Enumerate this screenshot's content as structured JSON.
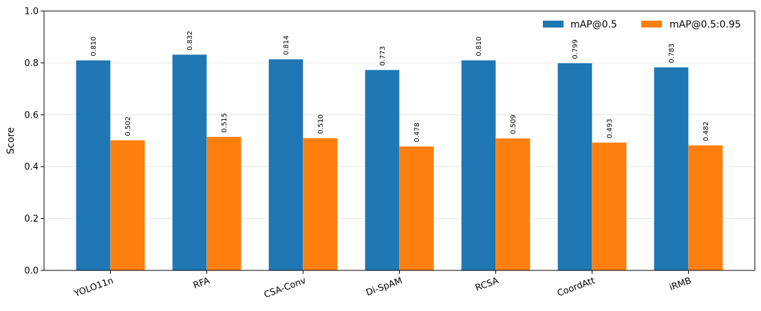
{
  "chart_data": {
    "type": "bar",
    "categories": [
      "YOLO11n",
      "RFA",
      "CSA-Conv",
      "Di-SpAM",
      "RCSA",
      "CoordAtt",
      "iRMB"
    ],
    "series": [
      {
        "name": "mAP@0.5",
        "color": "#1f77b4",
        "values": [
          0.81,
          0.832,
          0.814,
          0.773,
          0.81,
          0.799,
          0.783
        ],
        "labels": [
          "0.810",
          "0.832",
          "0.814",
          "0.773",
          "0.810",
          "0.799",
          "0.783"
        ]
      },
      {
        "name": "mAP@0.5:0.95",
        "color": "#ff7f0e",
        "values": [
          0.502,
          0.515,
          0.51,
          0.478,
          0.509,
          0.493,
          0.482
        ],
        "labels": [
          "0.502",
          "0.515",
          "0.510",
          "0.478",
          "0.509",
          "0.493",
          "0.482"
        ]
      }
    ],
    "ylabel": "Score",
    "ylim": [
      0,
      1.0
    ],
    "yticks": [
      "0.0",
      "0.2",
      "0.4",
      "0.6",
      "0.8",
      "1.0"
    ],
    "grid": true,
    "legend_position": "top-right"
  }
}
